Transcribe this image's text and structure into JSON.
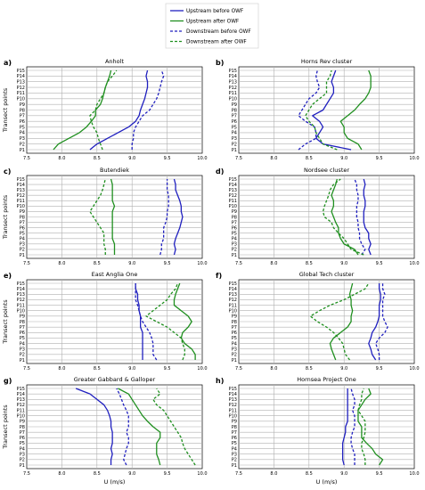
{
  "legend": {
    "entries": [
      {
        "label": "Upstream before OWF",
        "color": "#1f1fbf",
        "dash": false
      },
      {
        "label": "Upstream after OWF",
        "color": "#1f8f1f",
        "dash": false
      },
      {
        "label": "Downstream before OWF",
        "color": "#1f1fbf",
        "dash": true
      },
      {
        "label": "Downstream after OWF",
        "color": "#1f8f1f",
        "dash": true
      }
    ]
  },
  "axes": {
    "x_ticks": [
      "7.5",
      "8.0",
      "8.5",
      "9.0",
      "9.5",
      "10.0"
    ],
    "xlim": [
      7.5,
      10.0
    ],
    "xlabel": "U (m/s)",
    "ylabel": "Transect points",
    "y_ticks": [
      "P1",
      "P2",
      "P3",
      "P4",
      "P5",
      "P6",
      "P7",
      "P8",
      "P9",
      "P10",
      "P11",
      "P12",
      "P13",
      "P14",
      "P15"
    ],
    "y_tick_colors": [
      "#1f1fbf",
      "#1f1fbf",
      "#1f1fbf",
      "#e01f1f",
      "#e01f1f",
      "#e01f1f",
      "#1f1fbf",
      "#1f1fbf",
      "#e01f1f",
      "#e01f1f",
      "#1f1fbf",
      "#1f1fbf",
      "#e01f1f",
      "#1f1fbf",
      "#1f1fbf"
    ]
  },
  "chart_data": [
    {
      "type": "line",
      "panel": "a)",
      "title": "Anholt",
      "series": [
        {
          "name": "Upstream before OWF",
          "values": [
            8.4,
            8.5,
            8.65,
            8.8,
            8.95,
            9.05,
            9.1,
            9.12,
            9.15,
            9.18,
            9.2,
            9.22,
            9.22,
            9.2,
            9.22
          ]
        },
        {
          "name": "Upstream after OWF",
          "values": [
            7.88,
            7.95,
            8.1,
            8.25,
            8.35,
            8.42,
            8.48,
            8.48,
            8.55,
            8.58,
            8.6,
            8.62,
            8.65,
            8.68,
            8.7
          ]
        },
        {
          "name": "Downstream before OWF",
          "values": [
            9.0,
            9.0,
            9.02,
            9.02,
            9.05,
            9.1,
            9.15,
            9.25,
            9.3,
            9.35,
            9.38,
            9.4,
            9.42,
            9.45,
            9.42
          ]
        },
        {
          "name": "Downstream after OWF",
          "values": [
            8.58,
            8.55,
            8.52,
            8.5,
            8.45,
            8.42,
            8.4,
            8.48,
            8.5,
            8.55,
            8.6,
            8.62,
            8.65,
            8.72,
            8.78
          ]
        }
      ]
    },
    {
      "type": "line",
      "panel": "b)",
      "title": "Horns Rev cluster",
      "series": [
        {
          "name": "Upstream before OWF",
          "values": [
            9.1,
            8.7,
            8.6,
            8.65,
            8.7,
            8.65,
            8.55,
            8.7,
            8.75,
            8.8,
            8.85,
            8.85,
            8.82,
            8.85,
            8.88
          ]
        },
        {
          "name": "Upstream after OWF",
          "values": [
            9.25,
            9.2,
            9.05,
            9.0,
            9.0,
            8.95,
            9.05,
            9.15,
            9.22,
            9.3,
            9.35,
            9.38,
            9.38,
            9.38,
            9.35
          ]
        },
        {
          "name": "Downstream before OWF",
          "values": [
            8.35,
            8.45,
            8.6,
            8.6,
            8.58,
            8.45,
            8.35,
            8.4,
            8.45,
            8.5,
            8.6,
            8.65,
            8.62,
            8.6,
            8.62
          ]
        },
        {
          "name": "Downstream after OWF",
          "values": [
            8.9,
            8.7,
            8.65,
            8.6,
            8.58,
            8.5,
            8.45,
            8.5,
            8.55,
            8.65,
            8.75,
            8.75,
            8.75,
            8.8,
            8.82
          ]
        }
      ]
    },
    {
      "type": "line",
      "panel": "c)",
      "title": "Butendiek",
      "series": [
        {
          "name": "Upstream before OWF",
          "values": [
            9.6,
            9.62,
            9.6,
            9.62,
            9.65,
            9.68,
            9.7,
            9.72,
            9.7,
            9.7,
            9.68,
            9.65,
            9.62,
            9.62,
            9.6
          ]
        },
        {
          "name": "Upstream after OWF",
          "values": [
            8.75,
            8.75,
            8.75,
            8.72,
            8.72,
            8.72,
            8.72,
            8.72,
            8.72,
            8.75,
            8.72,
            8.72,
            8.72,
            8.72,
            8.7
          ]
        },
        {
          "name": "Downstream before OWF",
          "values": [
            9.4,
            9.42,
            9.42,
            9.45,
            9.45,
            9.45,
            9.48,
            9.5,
            9.5,
            9.52,
            9.52,
            9.52,
            9.5,
            9.5,
            9.5
          ]
        },
        {
          "name": "Downstream after OWF",
          "values": [
            8.62,
            8.62,
            8.6,
            8.6,
            8.6,
            8.55,
            8.5,
            8.45,
            8.4,
            8.45,
            8.5,
            8.55,
            8.58,
            8.6,
            8.62
          ]
        }
      ]
    },
    {
      "type": "line",
      "panel": "d)",
      "title": "Nordsee cluster",
      "series": [
        {
          "name": "Upstream before OWF",
          "values": [
            9.38,
            9.35,
            9.38,
            9.35,
            9.35,
            9.3,
            9.28,
            9.28,
            9.28,
            9.3,
            9.3,
            9.28,
            9.28,
            9.3,
            9.28
          ]
        },
        {
          "name": "Upstream after OWF",
          "values": [
            9.2,
            9.15,
            9.0,
            8.95,
            8.92,
            8.92,
            8.88,
            8.85,
            8.82,
            8.85,
            8.85,
            8.82,
            8.85,
            8.88,
            8.9
          ]
        },
        {
          "name": "Downstream before OWF",
          "values": [
            9.25,
            9.3,
            9.25,
            9.22,
            9.22,
            9.2,
            9.2,
            9.18,
            9.18,
            9.18,
            9.2,
            9.2,
            9.18,
            9.18,
            9.15
          ]
        },
        {
          "name": "Downstream after OWF",
          "values": [
            9.28,
            9.1,
            9.05,
            9.0,
            8.92,
            8.85,
            8.82,
            8.72,
            8.7,
            8.72,
            8.75,
            8.78,
            8.8,
            8.85,
            8.95
          ]
        }
      ]
    },
    {
      "type": "line",
      "panel": "e)",
      "title": "East Anglia One",
      "series": [
        {
          "name": "Upstream before OWF",
          "values": [
            9.15,
            9.15,
            9.15,
            9.15,
            9.15,
            9.15,
            9.12,
            9.12,
            9.12,
            9.1,
            9.1,
            9.08,
            9.08,
            9.05,
            9.05
          ]
        },
        {
          "name": "Upstream after OWF",
          "values": [
            9.9,
            9.9,
            9.85,
            9.75,
            9.7,
            9.72,
            9.8,
            9.85,
            9.8,
            9.7,
            9.6,
            9.6,
            9.62,
            9.65,
            9.68
          ]
        },
        {
          "name": "Downstream before OWF",
          "values": [
            9.35,
            9.3,
            9.3,
            9.3,
            9.28,
            9.25,
            9.2,
            9.15,
            9.12,
            9.1,
            9.08,
            9.05,
            9.05,
            9.05,
            9.05
          ]
        },
        {
          "name": "Downstream after OWF",
          "values": [
            9.72,
            9.75,
            9.75,
            9.72,
            9.7,
            9.6,
            9.5,
            9.35,
            9.2,
            9.3,
            9.4,
            9.5,
            9.55,
            9.62,
            9.65
          ]
        }
      ]
    },
    {
      "type": "line",
      "panel": "f)",
      "title": "Global Tech cluster",
      "series": [
        {
          "name": "Upstream before OWF",
          "values": [
            9.45,
            9.4,
            9.38,
            9.35,
            9.38,
            9.4,
            9.45,
            9.48,
            9.5,
            9.5,
            9.5,
            9.52,
            9.52,
            9.5,
            9.5
          ]
        },
        {
          "name": "Upstream after OWF",
          "values": [
            8.88,
            8.85,
            8.82,
            8.8,
            8.85,
            8.95,
            9.05,
            9.1,
            9.1,
            9.12,
            9.1,
            9.1,
            9.08,
            9.1,
            9.12
          ]
        },
        {
          "name": "Downstream before OWF",
          "values": [
            9.5,
            9.5,
            9.48,
            9.45,
            9.5,
            9.58,
            9.62,
            9.58,
            9.55,
            9.55,
            9.55,
            9.55,
            9.58,
            9.55,
            9.55
          ]
        },
        {
          "name": "Downstream after OWF",
          "values": [
            9.08,
            9.02,
            9.0,
            8.98,
            8.92,
            8.85,
            8.75,
            8.62,
            8.52,
            8.65,
            8.8,
            9.0,
            9.15,
            9.3,
            9.35
          ]
        }
      ]
    },
    {
      "type": "line",
      "panel": "g)",
      "title": "Greater Gabbard & Galloper",
      "series": [
        {
          "name": "Upstream before OWF",
          "values": [
            8.7,
            8.7,
            8.72,
            8.7,
            8.72,
            8.72,
            8.72,
            8.7,
            8.7,
            8.68,
            8.65,
            8.6,
            8.5,
            8.4,
            8.2
          ]
        },
        {
          "name": "Upstream after OWF",
          "values": [
            9.4,
            9.38,
            9.35,
            9.35,
            9.35,
            9.4,
            9.4,
            9.3,
            9.22,
            9.15,
            9.1,
            9.05,
            9.0,
            8.95,
            8.8
          ]
        },
        {
          "name": "Downstream before OWF",
          "values": [
            8.92,
            8.88,
            8.9,
            8.92,
            8.95,
            8.95,
            8.92,
            8.95,
            8.95,
            8.95,
            8.92,
            8.88,
            8.85,
            8.82,
            8.78
          ]
        },
        {
          "name": "Downstream after OWF",
          "values": [
            9.9,
            9.85,
            9.8,
            9.75,
            9.72,
            9.7,
            9.65,
            9.6,
            9.55,
            9.5,
            9.45,
            9.35,
            9.3,
            9.4,
            9.35
          ]
        }
      ]
    },
    {
      "type": "line",
      "panel": "h)",
      "title": "Hornsea Project One",
      "series": [
        {
          "name": "Upstream before OWF",
          "values": [
            9.0,
            8.98,
            8.98,
            8.98,
            8.98,
            9.0,
            9.02,
            9.02,
            9.05,
            9.05,
            9.05,
            9.05,
            9.05,
            9.05,
            9.05
          ]
        },
        {
          "name": "Upstream after OWF",
          "values": [
            9.5,
            9.55,
            9.45,
            9.4,
            9.32,
            9.25,
            9.25,
            9.25,
            9.2,
            9.2,
            9.2,
            9.25,
            9.3,
            9.38,
            9.35
          ]
        },
        {
          "name": "Downstream before OWF",
          "values": [
            9.15,
            9.15,
            9.15,
            9.12,
            9.1,
            9.1,
            9.12,
            9.15,
            9.15,
            9.15,
            9.12,
            9.15,
            9.15,
            9.12,
            9.1
          ]
        },
        {
          "name": "Downstream after OWF",
          "values": [
            9.3,
            9.3,
            9.28,
            9.25,
            9.25,
            9.28,
            9.3,
            9.3,
            9.3,
            9.25,
            9.2,
            9.22,
            9.25,
            9.25,
            9.28
          ]
        }
      ]
    }
  ]
}
